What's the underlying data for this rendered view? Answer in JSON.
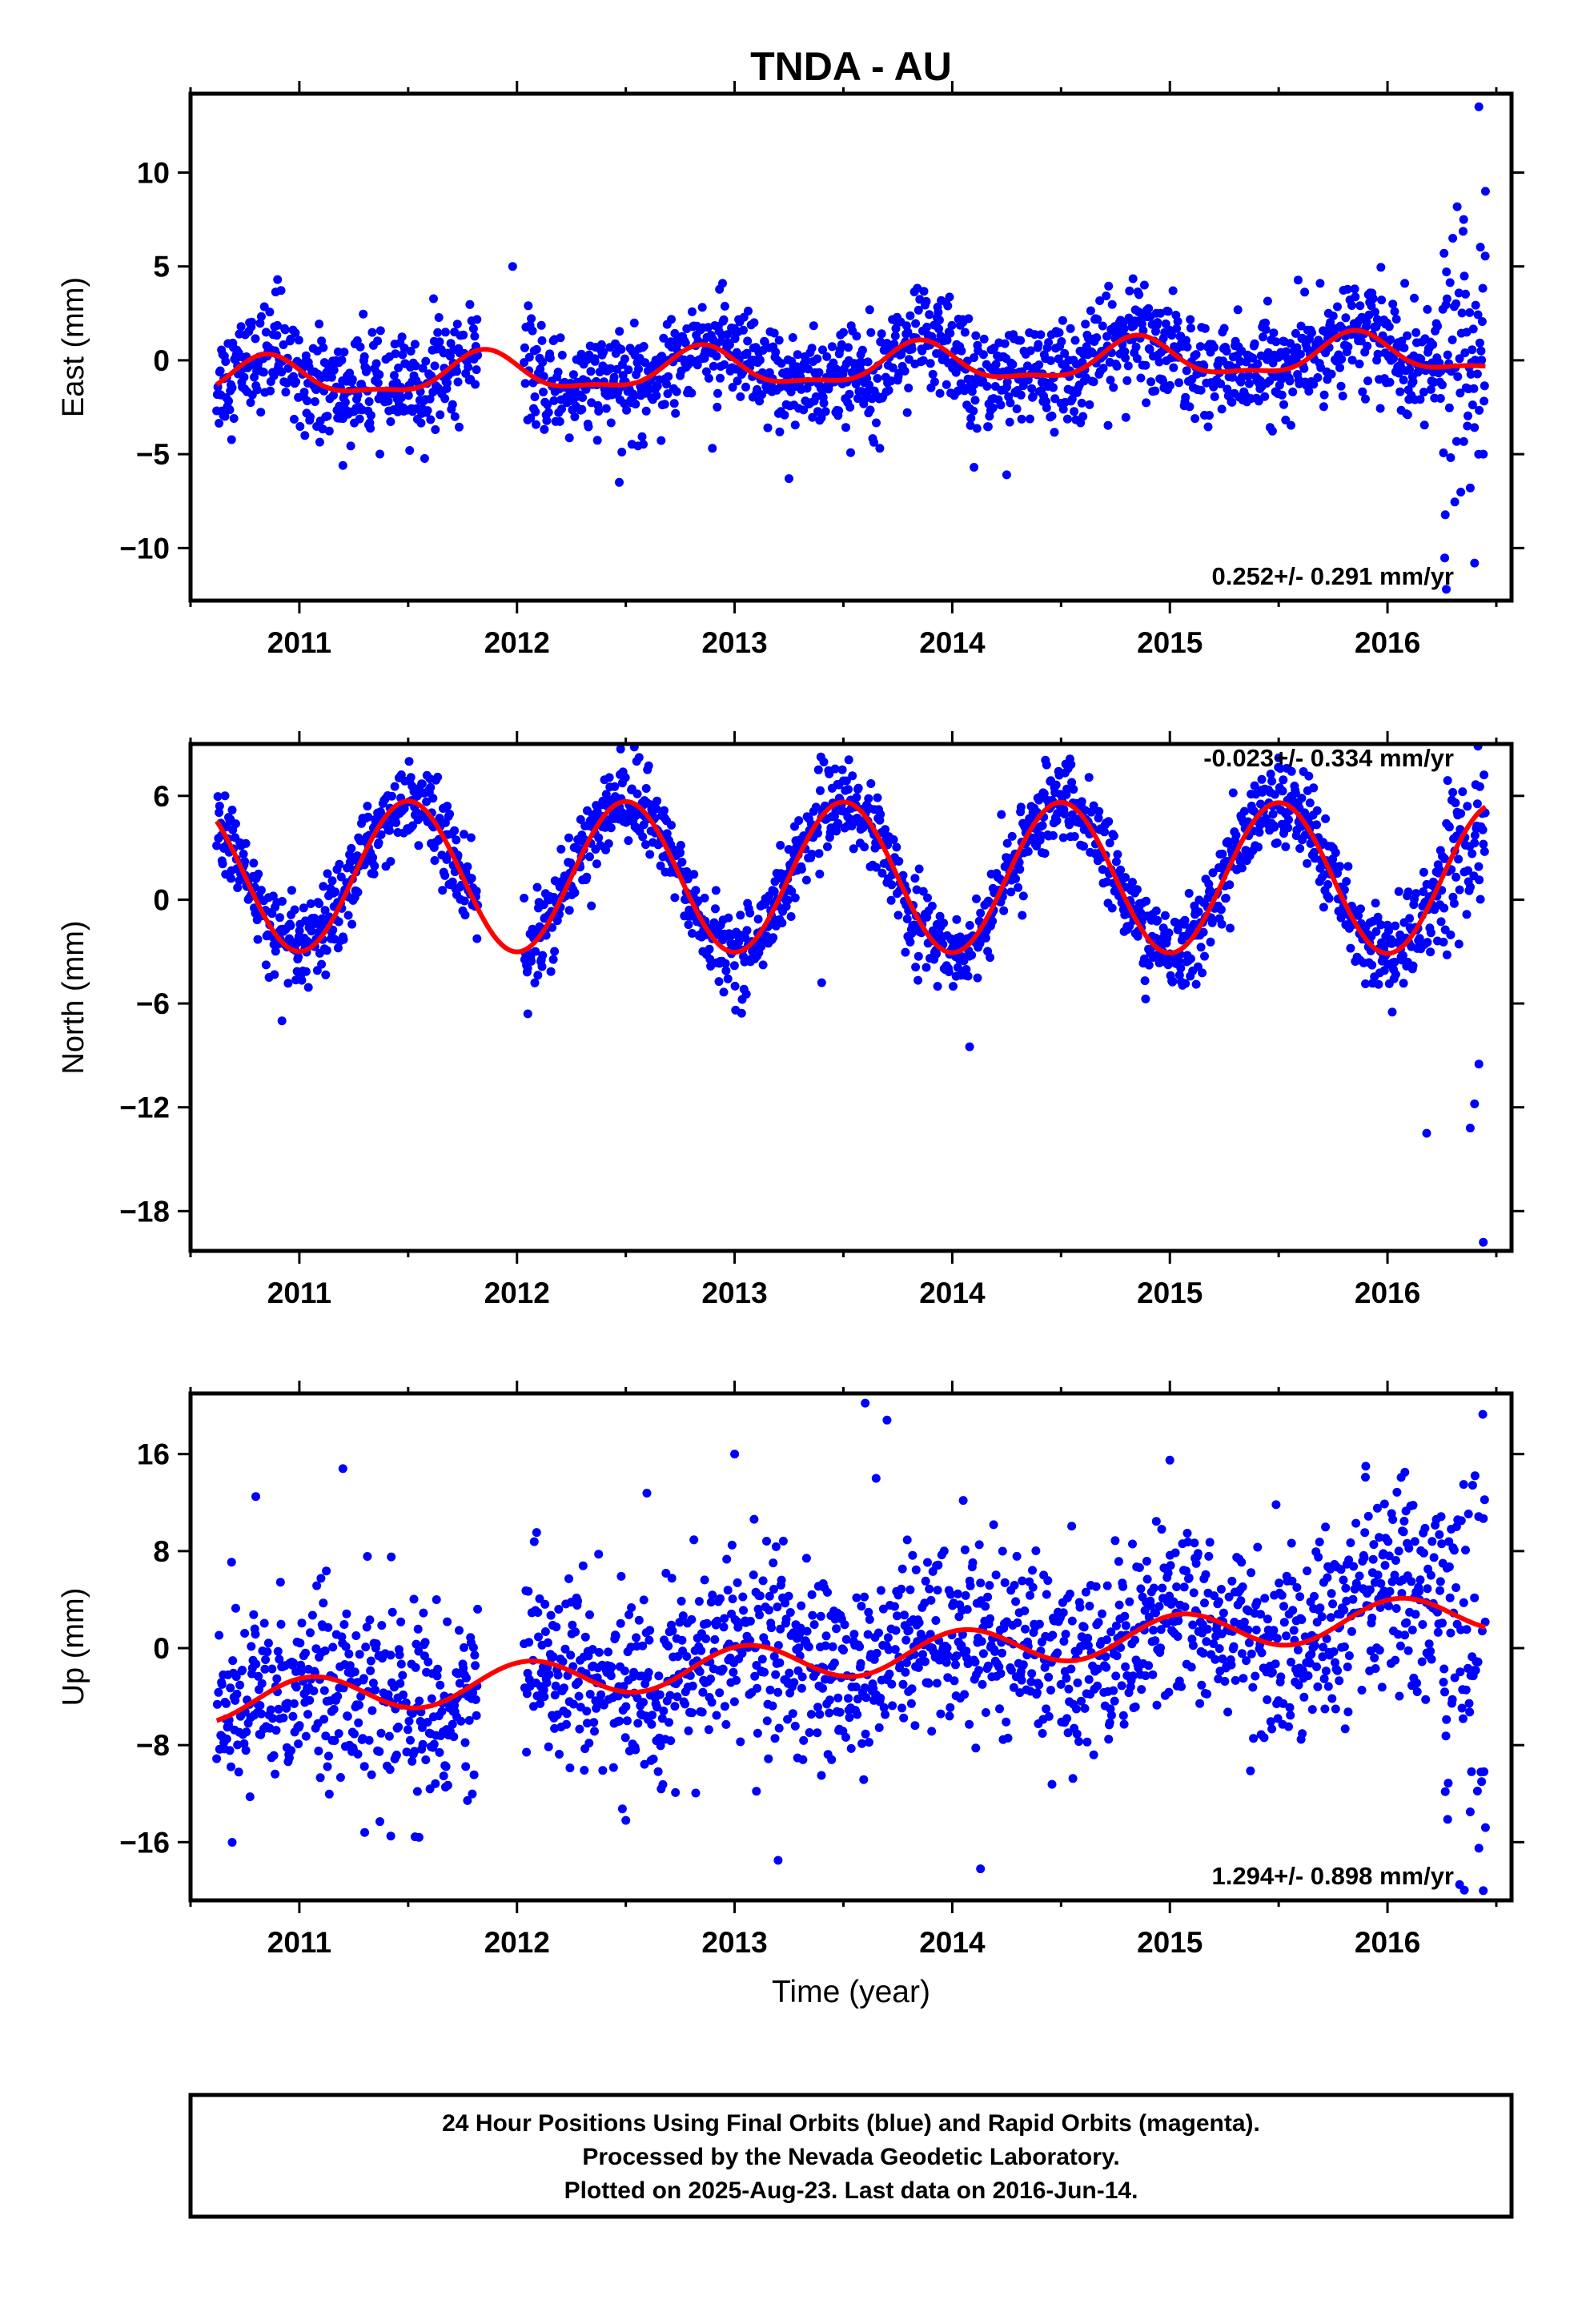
{
  "page_title": "TNDA - AU",
  "xlabel": "Time (year)",
  "footer": {
    "line1": "24 Hour Positions Using Final Orbits (blue) and Rapid Orbits (magenta).",
    "line2": "Processed by the Nevada Geodetic Laboratory.",
    "line3": "Plotted on 2025-Aug-23. Last data on 2016-Jun-14."
  },
  "colors": {
    "points": "#0000ff",
    "fit": "#ff0000",
    "frame": "#000000"
  },
  "chart_data": [
    {
      "type": "scatter",
      "name": "east",
      "ylabel": "East (mm)",
      "xlim": [
        2010.5,
        2016.57
      ],
      "ylim": [
        -12.8,
        14.2
      ],
      "xticks": [
        2011,
        2012,
        2013,
        2014,
        2015,
        2016
      ],
      "yticks": [
        10,
        5,
        0,
        -5,
        -10
      ],
      "rate_label": "0.252+/- 0.291 mm/yr",
      "data_range": [
        2010.62,
        2016.45
      ],
      "gaps": [
        [
          2011.82,
          2012.03
        ]
      ],
      "fit": {
        "offset": -0.35,
        "trend": 0.252,
        "ref": 2013.5,
        "annual_amp": 1.0,
        "annual_peak": 2011.85,
        "semi_amp": 0.35,
        "semi_peak": 2011.85
      },
      "scatter_sd": 1.35,
      "sample_points": [
        {
          "x": 2010.9,
          "y": 4.3
        },
        {
          "x": 2011.2,
          "y": -5.6
        },
        {
          "x": 2011.98,
          "y": 5.0
        },
        {
          "x": 2012.47,
          "y": -6.5
        },
        {
          "x": 2013.25,
          "y": -6.3
        },
        {
          "x": 2014.1,
          "y": -5.7
        },
        {
          "x": 2014.25,
          "y": -6.1
        },
        {
          "x": 2016.3,
          "y": 6.5
        },
        {
          "x": 2016.35,
          "y": 7.5
        },
        {
          "x": 2016.38,
          "y": -6.8
        },
        {
          "x": 2016.4,
          "y": -10.8
        },
        {
          "x": 2016.42,
          "y": 13.5
        },
        {
          "x": 2016.45,
          "y": 9.0
        },
        {
          "x": 2016.27,
          "y": -12.2
        }
      ]
    },
    {
      "type": "scatter",
      "name": "north",
      "ylabel": "North (mm)",
      "xlim": [
        2010.5,
        2016.57
      ],
      "ylim": [
        -20.3,
        9.0
      ],
      "xticks": [
        2011,
        2012,
        2013,
        2014,
        2015,
        2016
      ],
      "yticks": [
        6,
        0,
        -6,
        -12,
        -18
      ],
      "rate_label": "-0.023+/- 0.334 mm/yr",
      "data_range": [
        2010.62,
        2016.45
      ],
      "gaps": [
        [
          2011.82,
          2012.03
        ]
      ],
      "fit": {
        "offset": 1.3,
        "trend": -0.023,
        "ref": 2013.5,
        "annual_amp": 4.35,
        "annual_peak": 2011.5,
        "semi_amp": 0.0,
        "semi_peak": 2011.5
      },
      "scatter_sd": 1.2,
      "sample_points": [
        {
          "x": 2010.92,
          "y": -7.0
        },
        {
          "x": 2012.05,
          "y": -6.6
        },
        {
          "x": 2012.55,
          "y": 8.0
        },
        {
          "x": 2013.4,
          "y": -4.8
        },
        {
          "x": 2014.08,
          "y": -8.5
        },
        {
          "x": 2015.5,
          "y": 8.2
        },
        {
          "x": 2016.18,
          "y": -13.5
        },
        {
          "x": 2016.38,
          "y": -13.2
        },
        {
          "x": 2016.4,
          "y": -11.8
        },
        {
          "x": 2016.42,
          "y": -9.5
        },
        {
          "x": 2016.44,
          "y": -19.8
        },
        {
          "x": 2016.3,
          "y": 6.2
        }
      ]
    },
    {
      "type": "scatter",
      "name": "up",
      "ylabel": "Up (mm)",
      "xlim": [
        2010.5,
        2016.57
      ],
      "ylim": [
        -20.8,
        21.0
      ],
      "xticks": [
        2011,
        2012,
        2013,
        2014,
        2015,
        2016
      ],
      "yticks": [
        16,
        8,
        0,
        -8,
        -16
      ],
      "rate_label": "1.294+/- 0.898 mm/yr",
      "data_range": [
        2010.62,
        2016.45
      ],
      "gaps": [
        [
          2011.82,
          2012.03
        ]
      ],
      "fit": {
        "offset": -0.8,
        "trend": 1.294,
        "ref": 2013.5,
        "annual_amp": 1.6,
        "annual_peak": 2012.05,
        "semi_amp": 0.0,
        "semi_peak": 2012.05
      },
      "scatter_sd": 3.8,
      "sample_points": [
        {
          "x": 2010.8,
          "y": 12.5
        },
        {
          "x": 2011.2,
          "y": 14.8
        },
        {
          "x": 2011.3,
          "y": -15.2
        },
        {
          "x": 2011.42,
          "y": -15.5
        },
        {
          "x": 2011.55,
          "y": -15.6
        },
        {
          "x": 2012.5,
          "y": -14.2
        },
        {
          "x": 2013.0,
          "y": 16.0
        },
        {
          "x": 2013.1,
          "y": -11.8
        },
        {
          "x": 2013.2,
          "y": -17.5
        },
        {
          "x": 2013.6,
          "y": 20.2
        },
        {
          "x": 2013.7,
          "y": 18.8
        },
        {
          "x": 2013.65,
          "y": 14.0
        },
        {
          "x": 2014.13,
          "y": -18.2
        },
        {
          "x": 2015.0,
          "y": 15.5
        },
        {
          "x": 2015.9,
          "y": 15.0
        },
        {
          "x": 2016.08,
          "y": 14.5
        },
        {
          "x": 2016.35,
          "y": 13.5
        },
        {
          "x": 2016.38,
          "y": -13.5
        },
        {
          "x": 2016.42,
          "y": -16.5
        },
        {
          "x": 2016.44,
          "y": -20.0
        },
        {
          "x": 2016.45,
          "y": -14.8
        }
      ]
    }
  ]
}
